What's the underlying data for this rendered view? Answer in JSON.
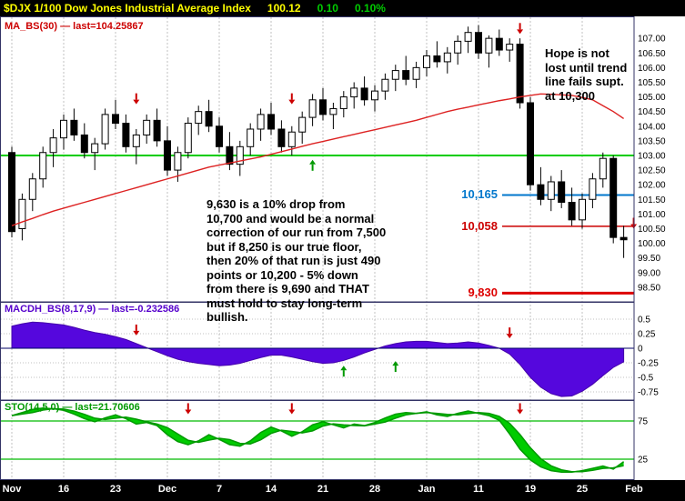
{
  "header": {
    "symbol_title": "$DJX 1/100 Dow Jones Industrial Average Index",
    "last_price": "100.12",
    "change": "0.10",
    "change_pct": "0.10%"
  },
  "panels": {
    "price": {
      "label": "MA_BS(30) — last=104.25867",
      "label_color": "#cc0000"
    },
    "macd": {
      "label": "MACDH_BS(8,17,9) — last=-0.232586",
      "label_color": "#5500cc"
    },
    "sto": {
      "label": "STO(14,5,0) — last=21.70606",
      "label_color": "#009900"
    }
  },
  "annotations": {
    "trend_note": {
      "lines": [
        "Hope is not",
        "lost until trend",
        "line fails supt.",
        "at 10,300"
      ]
    },
    "analysis_note": {
      "lines": [
        "9,630 is a 10% drop from",
        "10,700 and would be a normal",
        "correction of our run from 7,500",
        "but if 8,250 is our true floor,",
        "then 20% of that run is just 490",
        "points or 10,200 - 5% down",
        "from there is 9,690 and THAT",
        "must hold to stay long-term",
        "bullish."
      ]
    }
  },
  "colors": {
    "up_candle": "#ffffff",
    "down_candle": "#000000",
    "candle_stroke": "#000000",
    "ma_line": "#dd2222",
    "green_hline": "#00cc00",
    "macd_fill": "#5507dd",
    "macd_stroke": "#4400aa",
    "macd_zero": "#000066",
    "sto_fill": "#00cc00",
    "sto_stroke": "#009900",
    "sto_hline": "#00bb00",
    "grid": "#c0c0c0",
    "panel_border": "#333366",
    "arrow_red": "#cc0000",
    "arrow_green": "#009900"
  },
  "chart_data": {
    "type": "candlestick+indicators",
    "symbol": "$DJX",
    "title": "$DJX 1/100 Dow Jones Industrial Average Index",
    "x_ticks": [
      "Nov",
      "16",
      "23",
      "Dec",
      "7",
      "14",
      "21",
      "28",
      "Jan",
      "11",
      "19",
      "25",
      "Feb"
    ],
    "bars_per_tick": 5,
    "price_panel": {
      "ylim": [
        98.0,
        107.75
      ],
      "axis_ticks": [
        107.0,
        106.5,
        106.0,
        105.5,
        105.0,
        104.5,
        104.0,
        103.5,
        103.0,
        102.5,
        102.0,
        101.5,
        101.0,
        100.5,
        100.0,
        99.5,
        99.0,
        98.5
      ],
      "green_hline": 103.0,
      "ma30_last": 104.25867,
      "candles": [
        [
          103.1,
          103.3,
          100.2,
          100.4
        ],
        [
          100.5,
          101.7,
          100.1,
          101.5
        ],
        [
          101.5,
          102.4,
          101.1,
          102.2
        ],
        [
          102.2,
          103.3,
          101.9,
          103.1
        ],
        [
          103.1,
          103.9,
          102.6,
          103.6
        ],
        [
          103.6,
          104.4,
          103.2,
          104.2
        ],
        [
          104.2,
          104.6,
          103.5,
          103.7
        ],
        [
          103.7,
          104.1,
          102.9,
          103.1
        ],
        [
          103.1,
          103.6,
          102.5,
          103.4
        ],
        [
          103.4,
          104.6,
          103.2,
          104.4
        ],
        [
          104.4,
          104.9,
          103.9,
          104.1
        ],
        [
          104.1,
          104.4,
          103.1,
          103.3
        ],
        [
          103.3,
          103.9,
          102.7,
          103.7
        ],
        [
          103.7,
          104.4,
          103.4,
          104.2
        ],
        [
          104.2,
          104.6,
          103.3,
          103.5
        ],
        [
          103.5,
          104.0,
          102.3,
          102.5
        ],
        [
          102.5,
          103.3,
          102.1,
          103.1
        ],
        [
          103.1,
          104.3,
          102.9,
          104.1
        ],
        [
          104.1,
          104.7,
          103.7,
          104.5
        ],
        [
          104.5,
          104.9,
          103.8,
          104.0
        ],
        [
          104.0,
          104.3,
          103.1,
          103.3
        ],
        [
          103.3,
          103.8,
          102.5,
          102.7
        ],
        [
          102.7,
          103.5,
          102.3,
          103.3
        ],
        [
          103.3,
          104.1,
          103.0,
          103.9
        ],
        [
          103.9,
          104.6,
          103.5,
          104.4
        ],
        [
          104.4,
          104.8,
          103.7,
          103.9
        ],
        [
          103.9,
          104.2,
          103.1,
          103.3
        ],
        [
          103.3,
          104.0,
          103.0,
          103.8
        ],
        [
          103.8,
          104.5,
          103.4,
          104.3
        ],
        [
          104.3,
          105.1,
          104.0,
          104.9
        ],
        [
          104.9,
          105.3,
          104.2,
          104.4
        ],
        [
          104.4,
          104.8,
          103.9,
          104.6
        ],
        [
          104.6,
          105.2,
          104.3,
          105.0
        ],
        [
          105.0,
          105.5,
          104.6,
          105.3
        ],
        [
          105.3,
          105.7,
          104.7,
          104.9
        ],
        [
          104.9,
          105.4,
          104.5,
          105.2
        ],
        [
          105.2,
          105.8,
          104.9,
          105.6
        ],
        [
          105.6,
          106.1,
          105.2,
          105.9
        ],
        [
          105.9,
          106.4,
          105.4,
          105.6
        ],
        [
          105.6,
          106.2,
          105.3,
          106.0
        ],
        [
          106.0,
          106.6,
          105.7,
          106.4
        ],
        [
          106.4,
          106.9,
          106.0,
          106.2
        ],
        [
          106.2,
          106.7,
          105.8,
          106.5
        ],
        [
          106.5,
          107.1,
          106.1,
          106.9
        ],
        [
          106.9,
          107.4,
          106.5,
          107.2
        ],
        [
          107.2,
          107.45,
          106.3,
          106.5
        ],
        [
          106.5,
          107.1,
          106.0,
          107.0
        ],
        [
          107.0,
          107.3,
          106.4,
          106.6
        ],
        [
          106.6,
          107.0,
          106.2,
          106.8
        ],
        [
          106.8,
          107.0,
          104.6,
          104.8
        ],
        [
          104.8,
          105.0,
          101.8,
          102.0
        ],
        [
          102.0,
          102.6,
          101.3,
          101.5
        ],
        [
          101.5,
          102.3,
          101.1,
          102.1
        ],
        [
          102.1,
          102.5,
          101.2,
          101.4
        ],
        [
          101.4,
          101.9,
          100.6,
          100.8
        ],
        [
          100.8,
          101.7,
          100.5,
          101.5
        ],
        [
          101.5,
          102.4,
          101.2,
          102.2
        ],
        [
          102.2,
          103.1,
          101.9,
          102.9
        ],
        [
          102.9,
          103.0,
          100.0,
          100.2
        ],
        [
          100.2,
          100.6,
          99.5,
          100.12
        ]
      ],
      "ma30": [
        100.6,
        100.73,
        100.85,
        100.98,
        101.1,
        101.2,
        101.3,
        101.4,
        101.5,
        101.6,
        101.7,
        101.8,
        101.9,
        102.0,
        102.1,
        102.2,
        102.3,
        102.4,
        102.5,
        102.6,
        102.67,
        102.74,
        102.81,
        102.88,
        102.95,
        103.04,
        103.13,
        103.22,
        103.31,
        103.4,
        103.48,
        103.56,
        103.64,
        103.72,
        103.8,
        103.88,
        103.96,
        104.04,
        104.12,
        104.2,
        104.3,
        104.4,
        104.5,
        104.58,
        104.65,
        104.73,
        104.8,
        104.87,
        104.93,
        105.0,
        105.05,
        105.1,
        105.09,
        105.07,
        105.05,
        104.98,
        104.9,
        104.7,
        104.5,
        104.26
      ],
      "levels": [
        {
          "label": "10,165",
          "price": 101.65,
          "color": "#0077cc",
          "width": 2
        },
        {
          "label": "10,058",
          "price": 100.58,
          "color": "#cc0000",
          "width": 1.5
        },
        {
          "label": "9,830",
          "price": 98.3,
          "color": "#dd0000",
          "width": 3
        }
      ],
      "arrows": [
        {
          "bar": 12,
          "at": 104.75,
          "dir": "down",
          "color": "red"
        },
        {
          "bar": 27,
          "at": 104.75,
          "dir": "down",
          "color": "red"
        },
        {
          "bar": 29,
          "at": 102.85,
          "dir": "up",
          "color": "green"
        },
        {
          "bar": 49,
          "at": 107.15,
          "dir": "down",
          "color": "red"
        },
        {
          "bar": 59,
          "at": 100.5,
          "dir": "down",
          "color": "red",
          "dx": 11
        }
      ]
    },
    "macd_panel": {
      "ylim": [
        -0.89,
        0.8
      ],
      "axis_ticks": [
        "0.5",
        "0.25",
        "0",
        "-0.25",
        "-0.5",
        "-0.75"
      ],
      "axis_tick_values": [
        0.5,
        0.25,
        0,
        -0.25,
        -0.5,
        -0.75
      ],
      "last": -0.232586,
      "values": [
        0.38,
        0.42,
        0.45,
        0.44,
        0.42,
        0.4,
        0.36,
        0.31,
        0.27,
        0.24,
        0.2,
        0.15,
        0.08,
        0.01,
        -0.06,
        -0.13,
        -0.19,
        -0.23,
        -0.26,
        -0.28,
        -0.3,
        -0.29,
        -0.26,
        -0.21,
        -0.16,
        -0.12,
        -0.12,
        -0.15,
        -0.19,
        -0.23,
        -0.26,
        -0.25,
        -0.21,
        -0.15,
        -0.08,
        -0.02,
        0.04,
        0.08,
        0.11,
        0.12,
        0.12,
        0.1,
        0.08,
        0.09,
        0.11,
        0.09,
        0.05,
        0.0,
        -0.1,
        -0.28,
        -0.5,
        -0.67,
        -0.78,
        -0.83,
        -0.82,
        -0.74,
        -0.62,
        -0.47,
        -0.33,
        -0.233
      ],
      "arrows": [
        {
          "bar": 12,
          "at": 0.22,
          "dir": "down",
          "color": "red"
        },
        {
          "bar": 32,
          "at": -0.3,
          "dir": "up",
          "color": "green"
        },
        {
          "bar": 37,
          "at": -0.22,
          "dir": "up",
          "color": "green"
        },
        {
          "bar": 48,
          "at": 0.17,
          "dir": "down",
          "color": "red"
        }
      ]
    },
    "sto_panel": {
      "ylim": [
        0,
        100
      ],
      "axis_ticks": [
        "75",
        "25"
      ],
      "hlines": [
        75,
        25
      ],
      "last": 21.70606,
      "k": [
        82,
        86,
        90,
        92,
        91,
        89,
        84,
        78,
        74,
        79,
        83,
        78,
        71,
        73,
        69,
        57,
        48,
        44,
        49,
        57,
        51,
        44,
        42,
        49,
        60,
        67,
        62,
        55,
        61,
        70,
        74,
        70,
        66,
        71,
        69,
        73,
        79,
        84,
        86,
        85,
        87,
        83,
        81,
        85,
        88,
        85,
        82,
        76,
        58,
        38,
        24,
        15,
        10,
        8,
        8,
        10,
        13,
        16,
        12,
        21.7
      ],
      "arrows": [
        {
          "bar": 17,
          "at": 84,
          "dir": "down",
          "color": "red"
        },
        {
          "bar": 27,
          "at": 84,
          "dir": "down",
          "color": "red"
        },
        {
          "bar": 49,
          "at": 84,
          "dir": "down",
          "color": "red"
        }
      ]
    }
  }
}
